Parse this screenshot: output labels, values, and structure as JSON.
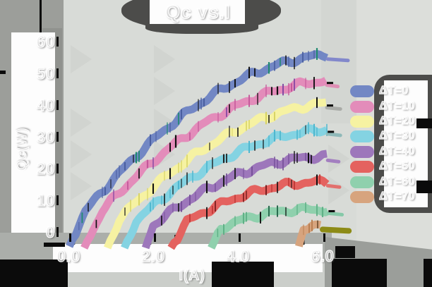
{
  "title": "Qc vs.I",
  "axes": {
    "x_label": "I(A)",
    "y_label": "Qc(W)"
  },
  "legend": {
    "items": [
      {
        "label": "ΔT=0",
        "color": "#7287c4"
      },
      {
        "label": "ΔT=10",
        "color": "#e38cba"
      },
      {
        "label": "ΔT=20",
        "color": "#f6f2a2"
      },
      {
        "label": "ΔT=30",
        "color": "#84d3e2"
      },
      {
        "label": "ΔT=40",
        "color": "#9d77bb"
      },
      {
        "label": "ΔT=50",
        "color": "#e4625f"
      },
      {
        "label": "ΔT=60",
        "color": "#8fd0ad"
      },
      {
        "label": "ΔT=70",
        "color": "#d7a47e"
      }
    ]
  },
  "chart_data": {
    "type": "line",
    "title": "Qc vs.I",
    "xlabel": "I(A)",
    "ylabel": "Qc(W)",
    "xlim": [
      -0.2,
      6.9
    ],
    "ylim": [
      -6,
      66
    ],
    "grid": false,
    "legend_position": "right",
    "x_ticks": [
      "0.0",
      "2.0",
      "4.0",
      "6.0"
    ],
    "x_tick_values": [
      0,
      2,
      4,
      6
    ],
    "y_ticks": [
      "0",
      "10",
      "20",
      "30",
      "40",
      "50",
      "60"
    ],
    "y_tick_values": [
      0,
      10,
      20,
      30,
      40,
      50,
      60
    ],
    "series": [
      {
        "name": "ΔT=0",
        "color": "#7287c4",
        "tick_color": "#4a5fa0",
        "accent": "#1f8a70",
        "points": [
          [
            0.02,
            -4.5
          ],
          [
            0.4,
            6.6
          ],
          [
            0.8,
            12.8
          ],
          [
            1.2,
            18.6
          ],
          [
            1.6,
            24.0
          ],
          [
            2.0,
            29.0
          ],
          [
            2.4,
            33.6
          ],
          [
            2.8,
            37.7
          ],
          [
            3.2,
            41.4
          ],
          [
            3.6,
            44.8
          ],
          [
            4.0,
            47.6
          ],
          [
            4.4,
            50.1
          ],
          [
            4.8,
            52.1
          ],
          [
            5.2,
            53.8
          ],
          [
            5.6,
            55.0
          ],
          [
            6.0,
            55.8
          ],
          [
            6.1,
            55.9
          ]
        ],
        "cap": {
          "x1": 6.12,
          "x2": 6.6,
          "y": 54.5,
          "color": "#8288cb",
          "w": 5,
          "black": false
        }
      },
      {
        "name": "ΔT=10",
        "color": "#e38cba",
        "tick_color": "#c4579a",
        "accent": "#7a3fa0",
        "points": [
          [
            0.37,
            -5.0
          ],
          [
            0.8,
            6.8
          ],
          [
            1.2,
            12.4
          ],
          [
            1.6,
            17.5
          ],
          [
            2.0,
            22.3
          ],
          [
            2.4,
            26.6
          ],
          [
            2.8,
            30.5
          ],
          [
            3.2,
            34.1
          ],
          [
            3.6,
            37.2
          ],
          [
            4.0,
            39.9
          ],
          [
            4.4,
            42.3
          ],
          [
            4.8,
            44.2
          ],
          [
            5.2,
            45.7
          ],
          [
            5.6,
            46.9
          ],
          [
            6.0,
            47.6
          ],
          [
            6.08,
            47.7
          ]
        ],
        "cap": {
          "x1": 6.1,
          "x2": 6.36,
          "y": 46.3,
          "color": "#df8fb5",
          "w": 5,
          "black": true
        }
      },
      {
        "name": "ΔT=20",
        "color": "#f6f2a2",
        "tick_color": "#d8d465",
        "accent": "#222222",
        "points": [
          [
            0.92,
            -5.0
          ],
          [
            1.2,
            4.2
          ],
          [
            1.6,
            9.4
          ],
          [
            2.0,
            14.2
          ],
          [
            2.4,
            18.6
          ],
          [
            2.8,
            22.6
          ],
          [
            3.2,
            26.2
          ],
          [
            3.6,
            29.4
          ],
          [
            4.0,
            32.3
          ],
          [
            4.4,
            34.7
          ],
          [
            4.8,
            36.8
          ],
          [
            5.2,
            38.4
          ],
          [
            5.6,
            39.7
          ],
          [
            6.0,
            40.5
          ],
          [
            6.08,
            40.6
          ]
        ],
        "cap": {
          "x1": 6.1,
          "x2": 6.42,
          "y": 39.2,
          "color": "#a9aba7",
          "w": 5,
          "black": true
        }
      },
      {
        "name": "ΔT=30",
        "color": "#84d3e2",
        "tick_color": "#4eb7cf",
        "accent": "#222222",
        "points": [
          [
            1.32,
            -5.0
          ],
          [
            1.6,
            3.7
          ],
          [
            2.0,
            8.3
          ],
          [
            2.4,
            12.5
          ],
          [
            2.8,
            16.3
          ],
          [
            3.2,
            19.6
          ],
          [
            3.6,
            22.6
          ],
          [
            4.0,
            25.2
          ],
          [
            4.4,
            27.4
          ],
          [
            4.8,
            29.2
          ],
          [
            5.2,
            30.6
          ],
          [
            5.6,
            31.6
          ],
          [
            6.0,
            32.2
          ],
          [
            6.1,
            32.3
          ]
        ],
        "cap": {
          "x1": 6.12,
          "x2": 6.42,
          "y": 30.9,
          "color": "#8fb9b9",
          "w": 5,
          "black": true
        }
      },
      {
        "name": "ΔT=40",
        "color": "#9d77bb",
        "tick_color": "#77519a",
        "accent": "#222222",
        "points": [
          [
            1.82,
            -5.0
          ],
          [
            2.0,
            2.2
          ],
          [
            2.4,
            6.2
          ],
          [
            2.8,
            9.8
          ],
          [
            3.2,
            13.0
          ],
          [
            3.6,
            15.7
          ],
          [
            4.0,
            18.1
          ],
          [
            4.4,
            20.0
          ],
          [
            4.8,
            21.6
          ],
          [
            5.2,
            22.7
          ],
          [
            5.6,
            23.5
          ],
          [
            6.0,
            23.8
          ],
          [
            6.1,
            23.9
          ]
        ],
        "cap": {
          "x1": 6.12,
          "x2": 6.38,
          "y": 22.6,
          "color": "#a37fc0",
          "w": 5,
          "black": false
        }
      },
      {
        "name": "ΔT=50",
        "color": "#e4625f",
        "tick_color": "#c23a38",
        "accent": "#7a1f1f",
        "points": [
          [
            2.42,
            -5.0
          ],
          [
            2.8,
            3.3
          ],
          [
            3.2,
            6.3
          ],
          [
            3.6,
            8.8
          ],
          [
            4.0,
            11.0
          ],
          [
            4.4,
            12.7
          ],
          [
            4.8,
            14.1
          ],
          [
            5.2,
            15.0
          ],
          [
            5.6,
            15.6
          ],
          [
            6.0,
            15.7
          ],
          [
            6.1,
            15.7
          ]
        ],
        "cap": {
          "x1": 6.12,
          "x2": 6.4,
          "y": 14.6,
          "color": "#e2706d",
          "w": 5,
          "black": false
        }
      },
      {
        "name": "ΔT=60",
        "color": "#8fd0ad",
        "tick_color": "#5fb186",
        "accent": "#2b6b4f",
        "points": [
          [
            3.37,
            -5.0
          ],
          [
            3.6,
            1.4
          ],
          [
            4.0,
            3.4
          ],
          [
            4.4,
            5.0
          ],
          [
            4.8,
            6.1
          ],
          [
            5.2,
            6.8
          ],
          [
            5.6,
            7.1
          ],
          [
            6.0,
            7.0
          ],
          [
            6.12,
            6.9
          ]
        ],
        "cap": {
          "x1": 6.14,
          "x2": 6.46,
          "y": 5.9,
          "color": "#86c9a8",
          "w": 5,
          "black": true
        }
      },
      {
        "name": "ΔT=70",
        "color": "#d7a47e",
        "tick_color": "#b97f52",
        "accent": "#6b4a2b",
        "points": [
          [
            5.44,
            -4.5
          ],
          [
            5.55,
            1.2
          ],
          [
            5.75,
            2.4
          ],
          [
            5.95,
            2.0
          ]
        ],
        "cap": {
          "x1": 6.0,
          "x2": 6.62,
          "y": 0.8,
          "color": "#8d8b16",
          "w": 8,
          "black": false
        }
      }
    ]
  }
}
